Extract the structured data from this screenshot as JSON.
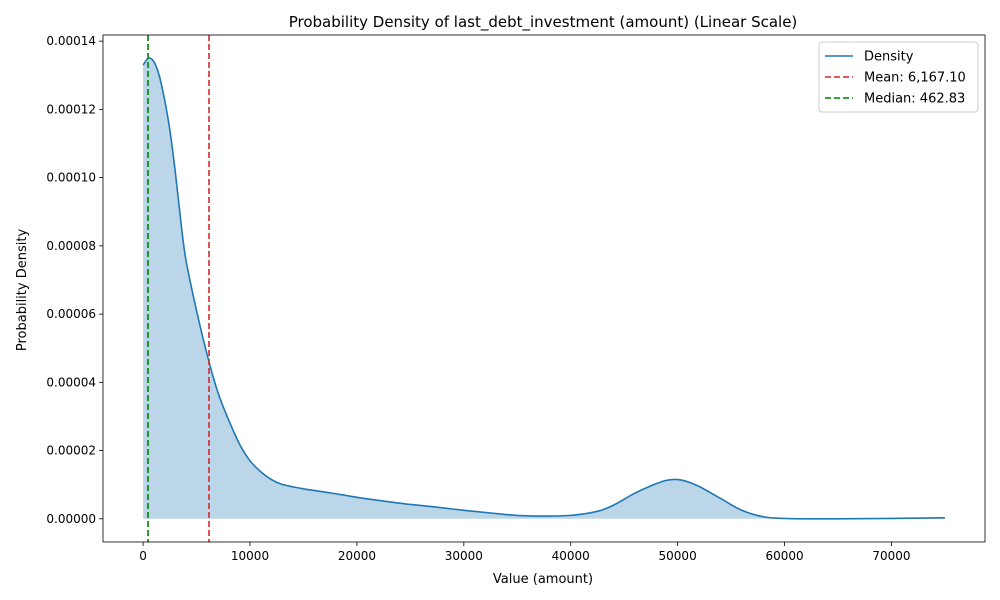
{
  "chart_data": {
    "type": "area",
    "title": "Probability Density of last_debt_investment (amount) (Linear Scale)",
    "xlabel": "Value (amount)",
    "ylabel": "Probability Density",
    "xlim": [
      -3750,
      78750
    ],
    "ylim": [
      -6.8e-06,
      0.0001418
    ],
    "x_ticks": [
      0,
      10000,
      20000,
      30000,
      40000,
      50000,
      60000,
      70000
    ],
    "x_tick_labels": [
      "0",
      "10000",
      "20000",
      "30000",
      "40000",
      "50000",
      "60000",
      "70000"
    ],
    "y_ticks": [
      0,
      2e-05,
      4e-05,
      6e-05,
      8e-05,
      0.0001,
      0.00012,
      0.00014
    ],
    "y_tick_labels": [
      "0.00000",
      "0.00002",
      "0.00004",
      "0.00006",
      "0.00008",
      "0.00010",
      "0.00012",
      "0.00014"
    ],
    "grid": false,
    "legend_position": "top-right",
    "series": [
      {
        "name": "Density",
        "color": "#1f77b4",
        "fill_color": "#1f77b4",
        "fill_opacity": 0.3,
        "x": [
          0,
          500,
          1000,
          1500,
          2000,
          2500,
          3000,
          3500,
          4000,
          5000,
          6000,
          7000,
          8000,
          9000,
          10000,
          11000,
          12000,
          13000,
          15000,
          17500,
          20000,
          22500,
          25000,
          27500,
          30000,
          32500,
          35000,
          37500,
          40000,
          42500,
          44000,
          46000,
          48000,
          49000,
          50000,
          51000,
          52000,
          54000,
          56000,
          58000,
          60000,
          62500,
          65000,
          70000,
          75000
        ],
        "y": [
          0.000133,
          0.000135,
          0.000134,
          0.00013,
          0.000123,
          0.000114,
          0.000102,
          8.8e-05,
          7.6e-05,
          6.1e-05,
          4.8e-05,
          3.7e-05,
          2.9e-05,
          2.2e-05,
          1.7e-05,
          1.38e-05,
          1.15e-05,
          1.01e-05,
          8.8e-06,
          7.6e-06,
          6.3e-06,
          5.2e-06,
          4.2e-06,
          3.4e-06,
          2.5e-06,
          1.7e-06,
          1e-06,
          8e-07,
          1e-06,
          2.2e-06,
          4e-06,
          7.5e-06,
          1.03e-05,
          1.13e-05,
          1.15e-05,
          1.08e-05,
          9.5e-06,
          6e-06,
          2.5e-06,
          6e-07,
          1e-07,
          0.0,
          0.0,
          1e-07,
          3e-07
        ]
      }
    ],
    "reference_lines": [
      {
        "name": "Mean: 6,167.10",
        "x": 6167.1,
        "color": "#d62728",
        "style": "dashed"
      },
      {
        "name": "Median: 462.83",
        "x": 462.83,
        "color": "#008000",
        "style": "dashed"
      }
    ]
  }
}
